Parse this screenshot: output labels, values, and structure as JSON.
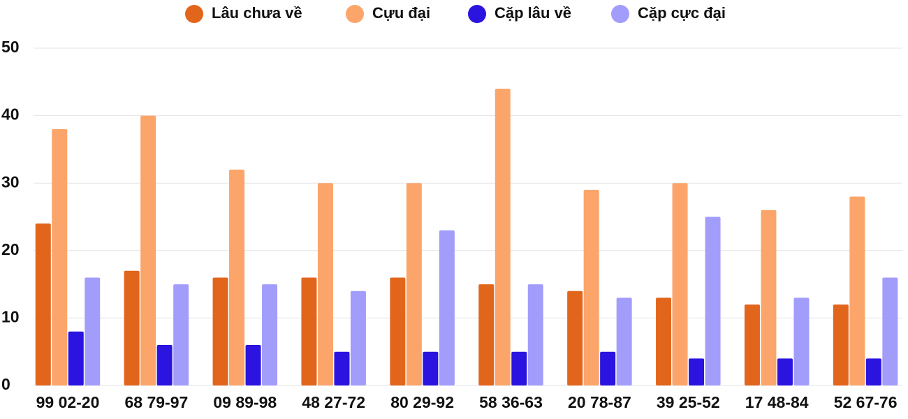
{
  "chart_data": {
    "type": "bar",
    "categories": [
      "99 02-20",
      "68 79-97",
      "09 89-98",
      "48 27-72",
      "80 29-92",
      "58 36-63",
      "20 78-87",
      "39 25-52",
      "17 48-84",
      "52 67-76"
    ],
    "series": [
      {
        "name": "Lâu chưa về",
        "color": "#e2651c",
        "values": [
          24,
          17,
          16,
          16,
          16,
          15,
          14,
          13,
          12,
          12
        ]
      },
      {
        "name": "Cựu đại",
        "color": "#fba56b",
        "values": [
          38,
          40,
          32,
          30,
          30,
          44,
          29,
          30,
          26,
          28
        ]
      },
      {
        "name": "Cặp lâu về",
        "color": "#2b14e0",
        "values": [
          8,
          6,
          6,
          5,
          5,
          5,
          5,
          4,
          4,
          4
        ]
      },
      {
        "name": "Cặp cực đại",
        "color": "#a29dfb",
        "values": [
          16,
          15,
          15,
          14,
          23,
          15,
          13,
          25,
          13,
          16
        ]
      }
    ],
    "ylim": [
      0,
      50
    ],
    "yticks": [
      0,
      10,
      20,
      30,
      40,
      50
    ],
    "grid": true,
    "legend": "top"
  }
}
